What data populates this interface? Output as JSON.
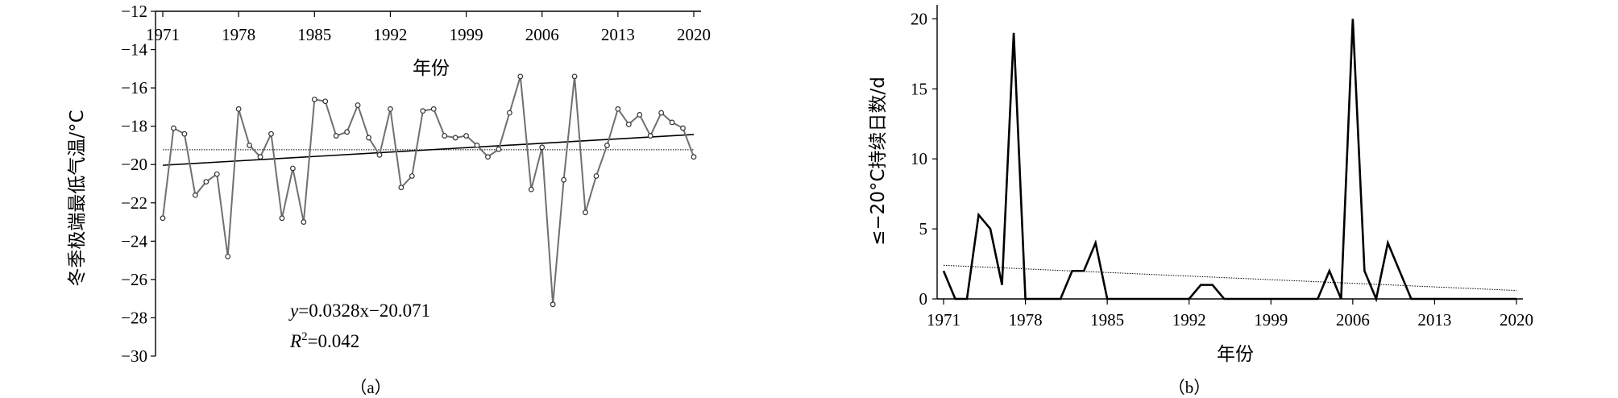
{
  "chart_data": [
    {
      "type": "line",
      "panel_label": "（a）",
      "xlabel": "年份",
      "ylabel": "冬季极端最低气温/°C",
      "x_ticks": [
        "1971",
        "1978",
        "1985",
        "1992",
        "1999",
        "2006",
        "2013",
        "2020"
      ],
      "y_ticks": [
        "−12",
        "−14",
        "−16",
        "−18",
        "−20",
        "−22",
        "−24",
        "−26",
        "−28",
        "−30"
      ],
      "xlim": [
        1971,
        2020
      ],
      "ylim": [
        -30,
        -12
      ],
      "x_axis_position": "top",
      "x": [
        1971,
        1972,
        1973,
        1974,
        1975,
        1976,
        1977,
        1978,
        1979,
        1980,
        1981,
        1982,
        1983,
        1984,
        1985,
        1986,
        1987,
        1988,
        1989,
        1990,
        1991,
        1992,
        1993,
        1994,
        1995,
        1996,
        1997,
        1998,
        1999,
        2000,
        2001,
        2002,
        2003,
        2004,
        2005,
        2006,
        2007,
        2008,
        2009,
        2010,
        2011,
        2012,
        2013,
        2014,
        2015,
        2016,
        2017,
        2018,
        2019,
        2020
      ],
      "series": [
        {
          "values": [
            -22.8,
            -18.1,
            -18.4,
            -21.6,
            -20.9,
            -20.5,
            -24.8,
            -17.1,
            -19.0,
            -19.6,
            -18.4,
            -22.8,
            -20.2,
            -23.0,
            -16.6,
            -16.7,
            -18.5,
            -18.3,
            -16.9,
            -18.6,
            -19.5,
            -17.1,
            -21.2,
            -20.6,
            -17.2,
            -17.1,
            -18.5,
            -18.6,
            -18.5,
            -19.0,
            -19.6,
            -19.2,
            -17.3,
            -15.4,
            -21.3,
            -19.1,
            -27.3,
            -20.8,
            -15.4,
            -22.5,
            -20.6,
            -19.0,
            -17.1,
            -17.9,
            -17.4,
            -18.5,
            -17.3,
            -17.8,
            -18.1,
            -19.6
          ],
          "color": "#707070",
          "markers": "open-circle"
        }
      ],
      "trend_line": {
        "slope": 0.0328,
        "intercept": -20.071
      },
      "mean_line": -19.23,
      "equation_label": {
        "y": "y",
        "rhs": "=0.0328x−20.071"
      },
      "r2_label": {
        "R": "R",
        "sup": "2",
        "rhs": "=0.042"
      }
    },
    {
      "type": "line",
      "panel_label": "（b）",
      "xlabel": "年份",
      "ylabel": "≤−20°C持续日数/d",
      "x_ticks": [
        "1971",
        "1978",
        "1985",
        "1992",
        "1999",
        "2006",
        "2013",
        "2020"
      ],
      "y_ticks": [
        "0",
        "5",
        "10",
        "15",
        "20"
      ],
      "xlim": [
        1971,
        2020
      ],
      "ylim": [
        0,
        21
      ],
      "x": [
        1971,
        1972,
        1973,
        1974,
        1975,
        1976,
        1977,
        1978,
        1979,
        1980,
        1981,
        1982,
        1983,
        1984,
        1985,
        1986,
        1987,
        1988,
        1989,
        1990,
        1991,
        1992,
        1993,
        1994,
        1995,
        1996,
        1997,
        1998,
        1999,
        2000,
        2001,
        2002,
        2003,
        2004,
        2005,
        2006,
        2007,
        2008,
        2009,
        2010,
        2011,
        2012,
        2013,
        2014,
        2015,
        2016,
        2017,
        2018,
        2019,
        2020
      ],
      "series": [
        {
          "values": [
            2,
            0,
            0,
            6,
            5,
            1,
            19,
            0,
            0,
            0,
            0,
            2,
            2,
            4,
            0,
            0,
            0,
            0,
            0,
            0,
            0,
            0,
            1,
            1,
            0,
            0,
            0,
            0,
            0,
            0,
            0,
            0,
            0,
            2,
            0,
            20,
            2,
            0,
            4,
            2,
            0,
            0,
            0,
            0,
            0,
            0,
            0,
            0,
            0,
            0
          ],
          "color": "#000000"
        }
      ],
      "trend_line": {
        "start": 2.4,
        "end": 0.6
      }
    }
  ]
}
